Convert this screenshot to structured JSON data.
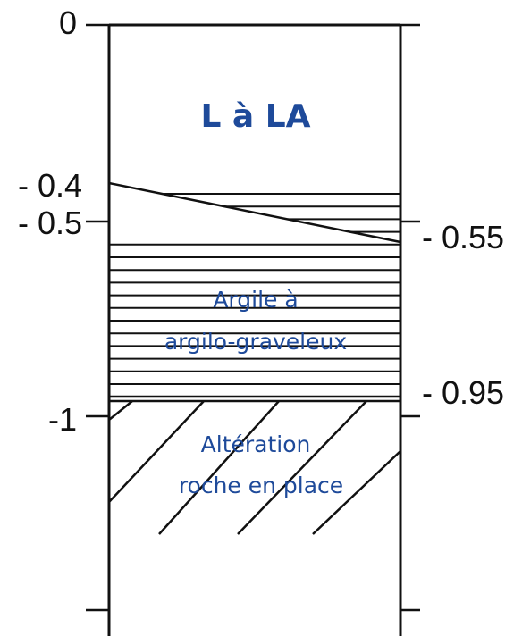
{
  "log": {
    "left_depth_labels": [
      "0",
      "- 0.4",
      "- 0.5",
      "-1"
    ],
    "right_depth_labels": [
      "- 0.55",
      "- 0.95"
    ],
    "layers": [
      {
        "id": "top",
        "lines": [
          "L à LA"
        ],
        "fill": "none"
      },
      {
        "id": "clay",
        "lines": [
          "Argile à",
          "argilo-graveleux"
        ],
        "fill": "horizontal-hatch"
      },
      {
        "id": "rock",
        "lines": [
          "Altération",
          "roche en place"
        ],
        "fill": "diagonal-hatch"
      }
    ],
    "text_color": "#1e4a9a",
    "line_color": "#111111"
  }
}
